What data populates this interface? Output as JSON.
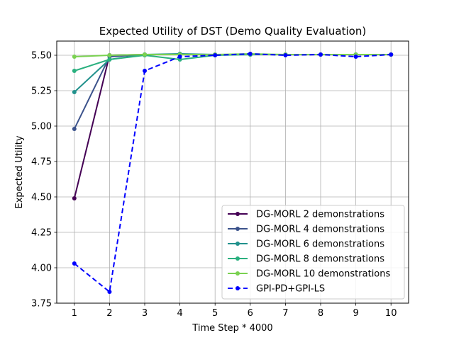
{
  "chart_data": {
    "type": "line",
    "title": "Expected Utility of DST (Demo Quality Evaluation)",
    "xlabel": "Time Step * 4000",
    "ylabel": "Expected Utility",
    "x": [
      1,
      2,
      3,
      4,
      5,
      6,
      7,
      8,
      9,
      10
    ],
    "xlim": [
      0.5,
      10.5
    ],
    "ylim": [
      3.75,
      5.6
    ],
    "xticks": [
      "1",
      "2",
      "3",
      "4",
      "5",
      "6",
      "7",
      "8",
      "9",
      "10"
    ],
    "yticks": [
      "3.75",
      "4.00",
      "4.25",
      "4.50",
      "4.75",
      "5.00",
      "5.25",
      "5.50"
    ],
    "grid": true,
    "legend_position": "lower-right",
    "series": [
      {
        "name": "DG-MORL 2 demonstrations",
        "color": "#440154",
        "dashed": false,
        "values": [
          4.49,
          5.5,
          5.505,
          5.505,
          5.505,
          5.505,
          5.505,
          5.505,
          5.505,
          5.505
        ]
      },
      {
        "name": "DG-MORL 4 demonstrations",
        "color": "#3b528b",
        "dashed": false,
        "values": [
          4.98,
          5.49,
          5.505,
          5.505,
          5.505,
          5.505,
          5.505,
          5.505,
          5.505,
          5.505
        ]
      },
      {
        "name": "DG-MORL 6 demonstrations",
        "color": "#21918c",
        "dashed": false,
        "values": [
          5.24,
          5.47,
          5.505,
          5.51,
          5.505,
          5.505,
          5.505,
          5.505,
          5.505,
          5.505
        ]
      },
      {
        "name": "DG-MORL 8 demonstrations",
        "color": "#2ab07f",
        "dashed": false,
        "values": [
          5.39,
          5.47,
          5.5,
          5.47,
          5.5,
          5.505,
          5.505,
          5.505,
          5.505,
          5.505
        ]
      },
      {
        "name": "DG-MORL 10 demonstrations",
        "color": "#7ad151",
        "dashed": false,
        "values": [
          5.49,
          5.5,
          5.505,
          5.505,
          5.505,
          5.51,
          5.505,
          5.505,
          5.505,
          5.505
        ]
      },
      {
        "name": "GPI-PD+GPI-LS",
        "color": "#0000ff",
        "dashed": true,
        "values": [
          4.03,
          3.83,
          5.39,
          5.49,
          5.5,
          5.51,
          5.5,
          5.505,
          5.49,
          5.505
        ]
      }
    ]
  }
}
